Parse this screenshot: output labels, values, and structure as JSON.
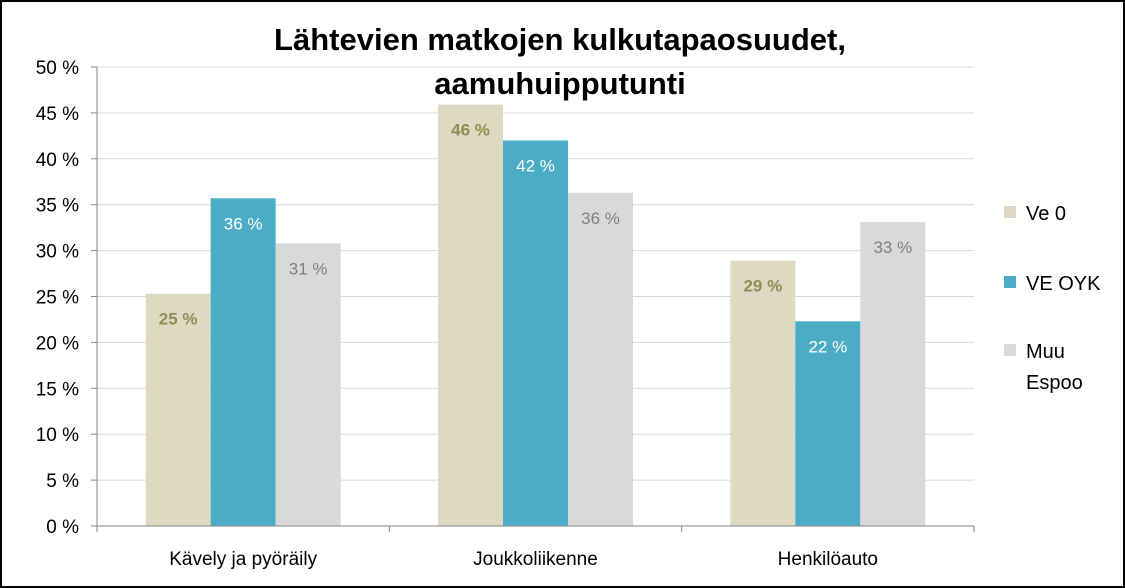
{
  "chart_data": {
    "type": "bar",
    "title_lines": [
      "Lähtevien matkojen kulkutapaosuudet,",
      "aamuhuipputunti"
    ],
    "categories": [
      "Kävely ja pyöräily",
      "Joukkoliikenne",
      "Henkilöauto"
    ],
    "series": [
      {
        "name": "Ve 0",
        "values": [
          25.3,
          45.9,
          28.9
        ],
        "labels": [
          "25 %",
          "46 %",
          "29 %"
        ],
        "color": "#DDD9C3",
        "label_color": "#948A54",
        "label_bold": true
      },
      {
        "name": "VE OYK",
        "values": [
          35.7,
          42.0,
          22.3
        ],
        "labels": [
          "36 %",
          "42 %",
          "22 %"
        ],
        "color": "#4BACC6",
        "label_color": "#FFFFFF",
        "label_bold": false
      },
      {
        "name": "Muu Espoo",
        "legend_lines": [
          "Muu",
          "Espoo"
        ],
        "values": [
          30.8,
          36.3,
          33.1
        ],
        "labels": [
          "31 %",
          "36 %",
          "33 %"
        ],
        "color": "#D9D9D9",
        "label_color": "#7F7F7F",
        "label_bold": false
      }
    ],
    "yticks": [
      "0 %",
      "5 %",
      "10 %",
      "15 %",
      "20 %",
      "25 %",
      "30 %",
      "35 %",
      "40 %",
      "45 %",
      "50 %"
    ],
    "ylim": [
      0,
      50
    ],
    "grid": true,
    "legend_position": "right"
  }
}
